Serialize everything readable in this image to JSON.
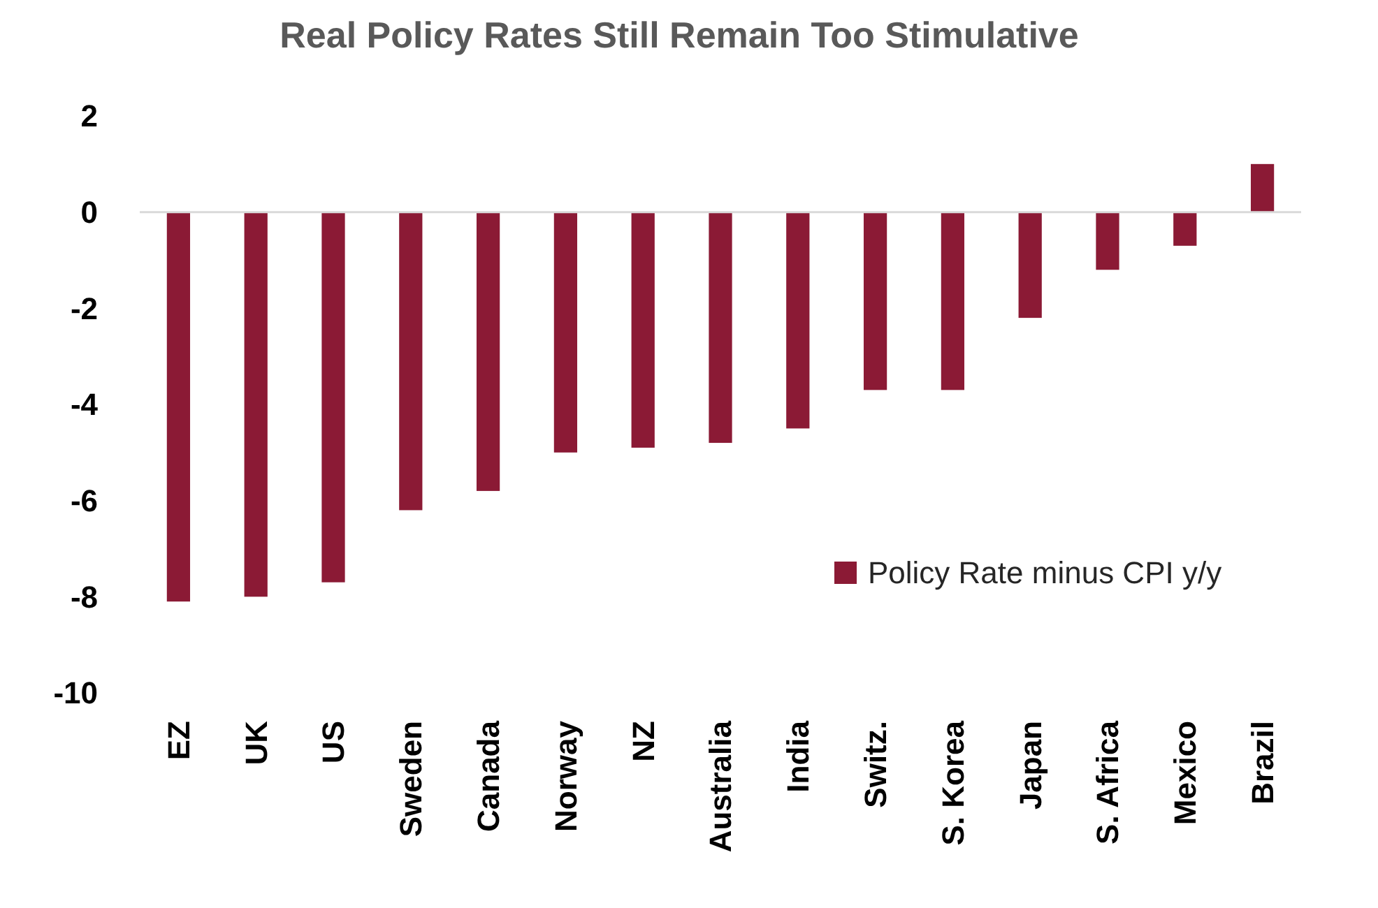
{
  "chart_data": {
    "type": "bar",
    "title": "Real Policy Rates Still Remain Too Stimulative",
    "categories": [
      "EZ",
      "UK",
      "US",
      "Sweden",
      "Canada",
      "Norway",
      "NZ",
      "Australia",
      "India",
      "Switz.",
      "S. Korea",
      "Japan",
      "S. Africa",
      "Mexico",
      "Brazil"
    ],
    "series": [
      {
        "name": "Policy Rate minus CPI y/y",
        "color": "#8b1a35",
        "values": [
          -8.1,
          -8.0,
          -7.7,
          -6.2,
          -5.8,
          -5.0,
          -4.9,
          -4.8,
          -4.5,
          -3.7,
          -3.7,
          -2.2,
          -1.2,
          -0.7,
          1.0
        ]
      }
    ],
    "ylim": [
      -10,
      2
    ],
    "yticks": [
      2,
      0,
      -2,
      -4,
      -6,
      -8,
      -10
    ],
    "legend": "right"
  }
}
